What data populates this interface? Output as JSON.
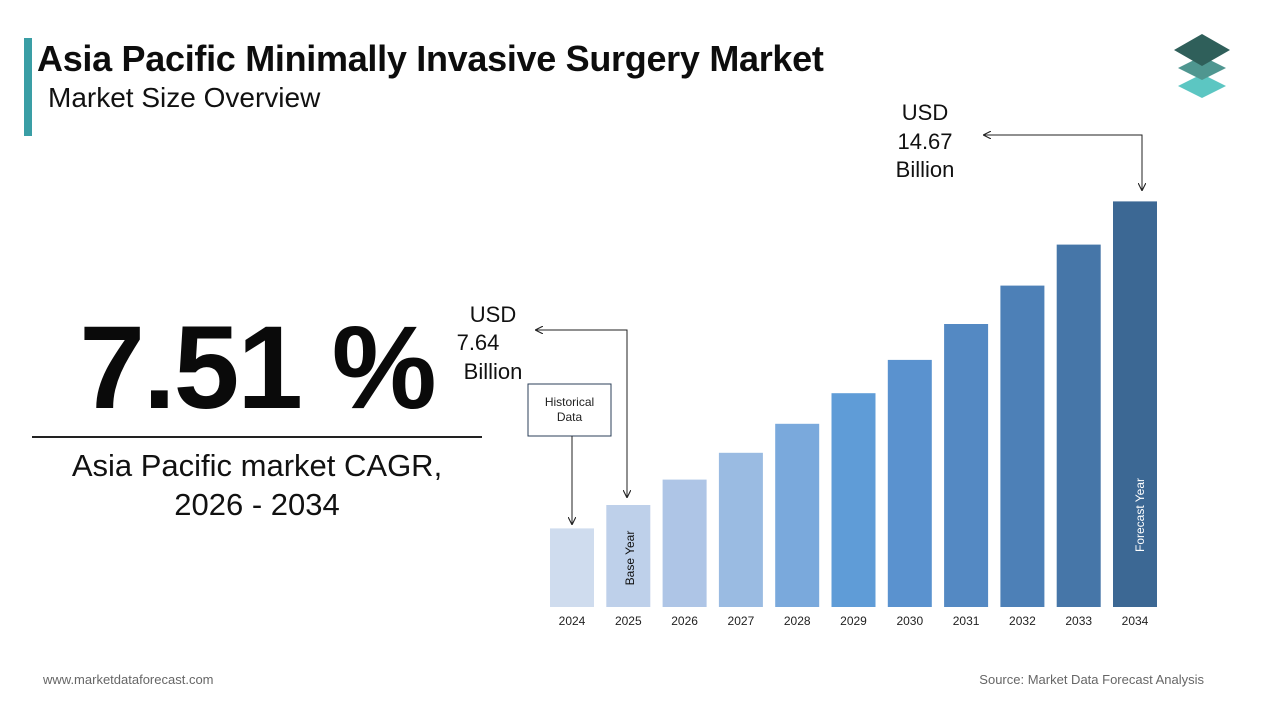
{
  "header": {
    "title": "Asia Pacific Minimally Invasive Surgery Market",
    "subtitle": "Market Size Overview"
  },
  "logo": {
    "icon": "stacked-layers-logo-icon",
    "colors": [
      "#2f5f5a",
      "#4f9690",
      "#5cc6c2"
    ]
  },
  "cagr": {
    "value": "7.51 %",
    "label_line1": "Asia Pacific market CAGR,",
    "label_line2": "2026 - 2034"
  },
  "annotations": {
    "start_value": {
      "line1": "USD",
      "line2": "7.64",
      "line3": "Billion"
    },
    "end_value": {
      "line1": "USD",
      "line2": "14.67",
      "line3": "Billion"
    },
    "historical_line1": "Historical",
    "historical_line2": "Data",
    "base_year": "Base Year",
    "forecast_year": "Forecast Year"
  },
  "chart_data": {
    "type": "bar",
    "title": "",
    "xlabel": "",
    "ylabel": "",
    "categories": [
      "2024",
      "2025",
      "2026",
      "2027",
      "2028",
      "2029",
      "2030",
      "2031",
      "2032",
      "2033",
      "2034"
    ],
    "values": [
      7.1,
      7.64,
      8.23,
      8.85,
      9.52,
      10.23,
      11.0,
      11.83,
      12.72,
      13.67,
      14.67
    ],
    "units": "USD Billion",
    "ylim": [
      0,
      15
    ],
    "grid": false,
    "legend": "none",
    "bar_colors": [
      "#cfdcee",
      "#bed0ea",
      "#aec5e6",
      "#9abbe2",
      "#7aa9dc",
      "#5f9cd7",
      "#5a92cf",
      "#5489c3",
      "#4d80b7",
      "#4676a8",
      "#3c6894"
    ]
  },
  "footer": {
    "website": "www.marketdataforecast.com",
    "source": "Source: Market Data Forecast Analysis"
  }
}
